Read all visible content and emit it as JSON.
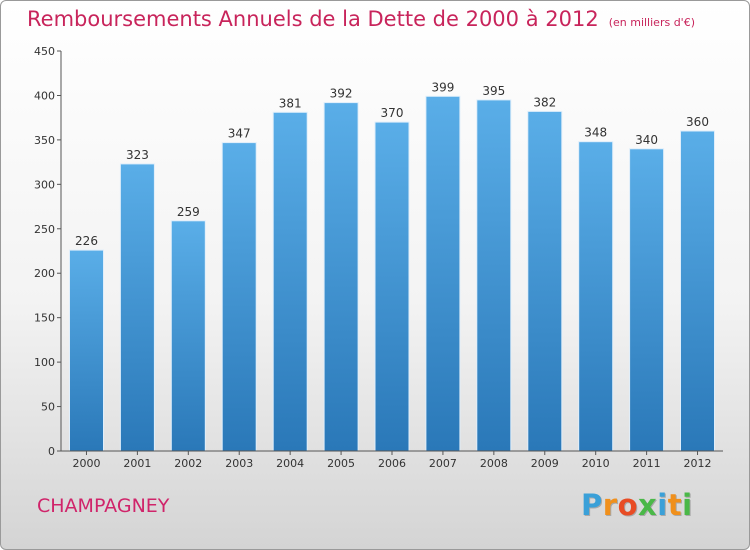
{
  "chart_data": {
    "type": "bar",
    "title": "Remboursements Annuels de la Dette de 2000 à 2012",
    "unit": "(en milliers d'€)",
    "categories": [
      "2000",
      "2001",
      "2002",
      "2003",
      "2004",
      "2005",
      "2006",
      "2007",
      "2008",
      "2009",
      "2010",
      "2011",
      "2012"
    ],
    "values": [
      226,
      323,
      259,
      347,
      381,
      392,
      370,
      399,
      395,
      382,
      348,
      340,
      360
    ],
    "ylim": [
      0,
      450
    ],
    "yticks": [
      0,
      50,
      100,
      150,
      200,
      250,
      300,
      350,
      400,
      450
    ],
    "grid": false,
    "bar_color_top": "#5aaee8",
    "bar_color_bottom": "#2a78b8"
  },
  "footer": {
    "commune": "CHAMPAGNEY",
    "logo_letters": [
      {
        "ch": "P",
        "color": "#3aa0d8"
      },
      {
        "ch": "r",
        "color": "#f0901c"
      },
      {
        "ch": "o",
        "color": "#e84c24"
      },
      {
        "ch": "x",
        "color": "#4ab848"
      },
      {
        "ch": "i",
        "color": "#3aa0d8"
      },
      {
        "ch": "t",
        "color": "#f0901c"
      },
      {
        "ch": "i",
        "color": "#4ab848"
      }
    ]
  }
}
